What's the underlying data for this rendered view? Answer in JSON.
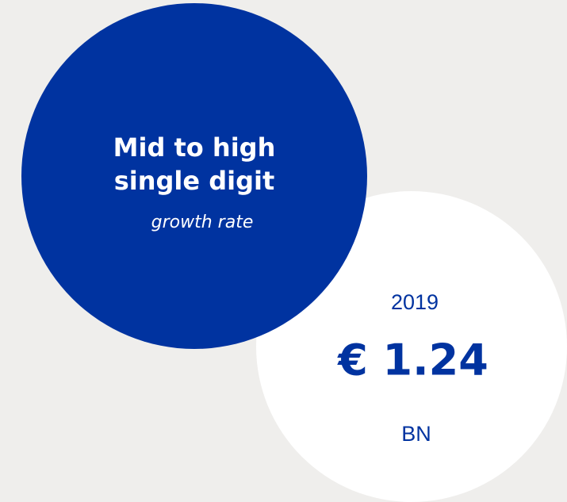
{
  "growth_circle": {
    "headline_lines": [
      "Mid to high",
      "single digit"
    ],
    "caption": "growth rate"
  },
  "value_circle": {
    "year": "2019",
    "value": "€ 1.24",
    "unit": "BN"
  }
}
